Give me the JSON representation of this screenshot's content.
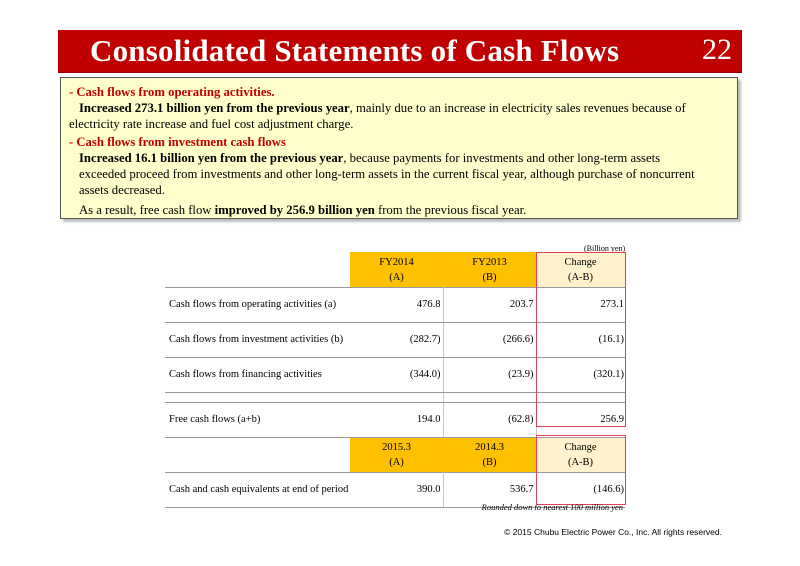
{
  "header": {
    "title": "Consolidated Statements of Cash Flows",
    "page_number": "22"
  },
  "summary": {
    "op_heading": "- Cash flows from operating activities.",
    "op_bold": "Increased 273.1 billion yen from the previous year",
    "op_text_1": ", mainly due to an increase in electricity sales revenues because of",
    "op_text_2": "electricity rate increase and fuel cost adjustment charge.",
    "inv_heading": "- Cash flows from investment cash flows",
    "inv_bold": "Increased 16.1 billion yen from the previous year",
    "inv_text_1": ", because payments for investments and other long-term assets",
    "inv_text_2": "exceeded proceed from investments and other long-term assets in the current fiscal year, although purchase of noncurrent",
    "inv_text_3": "assets decreased.",
    "result_pre": "As a result,  free cash flow ",
    "result_bold": "improved by 256.9 billion yen",
    "result_post": " from the previous fiscal year."
  },
  "table": {
    "unit": "(Billion yen)",
    "header1": {
      "a_line1": "FY2014",
      "a_line2": "(A)",
      "b_line1": "FY2013",
      "b_line2": "(B)",
      "c_line1": "Change",
      "c_line2": "(A-B)"
    },
    "rows": [
      {
        "label": "Cash flows from operating activities (a)",
        "a": "476.8",
        "b": "203.7",
        "c": "273.1"
      },
      {
        "label": "Cash flows from investment activities (b)",
        "a": "(282.7)",
        "b": "(266.6)",
        "c": "(16.1)"
      },
      {
        "label": "Cash flows from financing activities",
        "a": "(344.0)",
        "b": "(23.9)",
        "c": "(320.1)"
      },
      {
        "label": "Free cash flows (a+b)",
        "a": "194.0",
        "b": "(62.8)",
        "c": "256.9"
      }
    ],
    "header2": {
      "a_line1": "2015.3",
      "a_line2": "(A)",
      "b_line1": "2014.3",
      "b_line2": "(B)",
      "c_line1": "Change",
      "c_line2": "(A-B)"
    },
    "rows2": [
      {
        "label": "Cash and cash equivalents at end of period",
        "a": "390.0",
        "b": "536.7",
        "c": "(146.6)"
      }
    ]
  },
  "footer": {
    "rounding_note": "Rounded down to nearest 100 million yen",
    "copyright": "© 2015 Chubu Electric Power Co., Inc. All rights reserved."
  },
  "colors": {
    "title_bar": "#c00000",
    "summary_bg": "#ffffcc",
    "header_cell": "#ffc000",
    "change_header": "#fff2cc",
    "change_frame": "#e0405a"
  }
}
